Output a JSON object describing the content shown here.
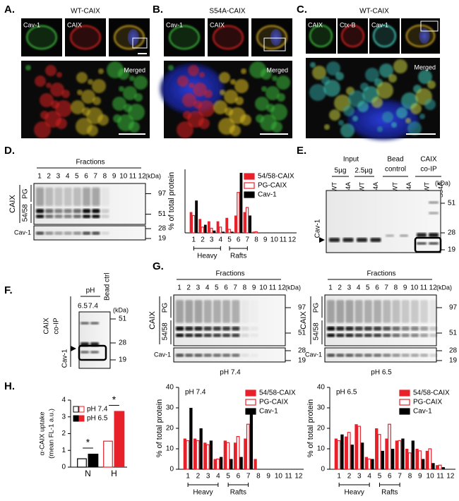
{
  "panels": {
    "A": {
      "letter": "A.",
      "title": "WT-CAIX",
      "channels": [
        "Cav-1",
        "CAIX"
      ],
      "merged": "Merged"
    },
    "B": {
      "letter": "B.",
      "title": "S54A-CAIX",
      "channels": [
        "Cav-1",
        "CAIX"
      ],
      "merged": "Merged"
    },
    "C": {
      "letter": "C.",
      "title": "WT-CAIX",
      "channels": [
        "CAIX",
        "Ctx-B",
        "Cav-1"
      ],
      "merged": "Merged"
    },
    "D": {
      "letter": "D.",
      "header": "Fractions",
      "lanes": [
        "1",
        "2",
        "3",
        "4",
        "5",
        "6",
        "7",
        "8",
        "9",
        "10",
        "11",
        "12"
      ],
      "kda": "(kDa)",
      "markers": [
        "97",
        "51",
        "28",
        "19"
      ],
      "protein": "CAIX",
      "bands": [
        "PG",
        "54/58"
      ],
      "cav": "Cav-1"
    },
    "E": {
      "letter": "E.",
      "input": "Input",
      "amounts": [
        "5µg",
        "2.5µg"
      ],
      "bead": [
        "Bead",
        "control"
      ],
      "coip": [
        "CAIX",
        "co-IP"
      ],
      "lanes": [
        "WT",
        "S54A",
        "WT",
        "S54A",
        "WT",
        "S54A",
        "WT",
        "S54A"
      ],
      "kda": "(kDa)",
      "markers": [
        "51",
        "28",
        "19"
      ],
      "cav": "Cav-1"
    },
    "F": {
      "letter": "F.",
      "ph": "pH",
      "lanes": [
        "6.5",
        "7.4",
        "Bead ctrl"
      ],
      "kda": "(kDa)",
      "markers": [
        "51",
        "28",
        "19"
      ],
      "coip": [
        "CAIX",
        "co-IP"
      ],
      "cav": "Cav-1"
    },
    "G": {
      "letter": "G.",
      "blots": [
        {
          "header": "Fractions",
          "lanes": [
            "1",
            "2",
            "3",
            "4",
            "5",
            "6",
            "7",
            "8",
            "9",
            "10",
            "11",
            "12"
          ],
          "kda": "(kDa)",
          "markers": [
            "97",
            "51",
            "28",
            "19"
          ],
          "protein": "CAIX",
          "bands": [
            "PG",
            "54/58"
          ],
          "cav": "Cav-1",
          "caption": "pH 7.4"
        },
        {
          "header": "Fractions",
          "lanes": [
            "1",
            "2",
            "3",
            "4",
            "5",
            "6",
            "7",
            "8",
            "9",
            "10",
            "11",
            "12"
          ],
          "kda": "(kDa)",
          "markers": [
            "97",
            "51",
            "28",
            "19"
          ],
          "protein": "CAIX",
          "bands": [
            "PG",
            "54/58"
          ],
          "cav": "Cav-1",
          "caption": "pH 6.5"
        }
      ]
    },
    "H": {
      "letter": "H."
    }
  },
  "chart_data": [
    {
      "type": "bar",
      "y_label": "% of total protein",
      "categories": [
        "1",
        "2",
        "3",
        "4",
        "5",
        "6",
        "7",
        "8",
        "9",
        "10",
        "11",
        "12"
      ],
      "group_labels": [
        "Heavy",
        "Rafts"
      ],
      "series": [
        {
          "name": "54/58-CAIX",
          "color": "#e8202a",
          "style": "filled",
          "values": [
            18,
            12,
            10,
            10,
            13,
            15,
            18,
            1,
            0,
            0,
            0,
            0
          ]
        },
        {
          "name": "PG-CAIX",
          "color": "#e8202a",
          "style": "outline",
          "values": [
            15,
            5,
            4,
            5,
            3,
            35,
            22,
            1,
            0,
            0,
            0,
            0
          ]
        },
        {
          "name": "Cav-1",
          "color": "#000000",
          "style": "filled",
          "values": [
            28,
            7,
            2,
            1,
            1,
            52,
            15,
            0,
            0,
            0,
            0,
            0
          ]
        }
      ],
      "ylim": [
        0,
        55
      ]
    },
    {
      "type": "bar",
      "title": "pH 7.4",
      "y_label": "% of total protein",
      "categories": [
        "1",
        "2",
        "3",
        "4",
        "5",
        "6",
        "7",
        "8",
        "9",
        "10",
        "11",
        "12"
      ],
      "group_labels": [
        "Heavy",
        "Rafts"
      ],
      "series": [
        {
          "name": "54/58-CAIX",
          "color": "#e8202a",
          "style": "filled",
          "values": [
            15,
            15,
            13,
            5,
            14,
            13,
            15,
            5,
            0,
            0,
            0,
            0
          ]
        },
        {
          "name": "PG-CAIX",
          "color": "#e8202a",
          "style": "outline",
          "values": [
            14,
            14,
            12,
            5,
            13,
            16,
            22,
            0,
            0,
            0,
            0,
            0
          ]
        },
        {
          "name": "Cav-1",
          "color": "#000000",
          "style": "filled",
          "values": [
            30,
            20,
            14,
            6,
            5,
            6,
            27,
            0,
            0,
            0,
            0,
            0
          ]
        }
      ],
      "ylim": [
        0,
        40
      ],
      "yticks": [
        0,
        10,
        20,
        30,
        40
      ]
    },
    {
      "type": "bar",
      "title": "pH 6.5",
      "y_label": "% of total protein",
      "categories": [
        "1",
        "2",
        "3",
        "4",
        "5",
        "6",
        "7",
        "8",
        "9",
        "10",
        "11",
        "12"
      ],
      "group_labels": [
        "Heavy",
        "Rafts"
      ],
      "series": [
        {
          "name": "54/58-CAIX",
          "color": "#e8202a",
          "style": "filled",
          "values": [
            15,
            16,
            22,
            6,
            20,
            15,
            14,
            10,
            10,
            9,
            2,
            0
          ]
        },
        {
          "name": "PG-CAIX",
          "color": "#e8202a",
          "style": "outline",
          "values": [
            14,
            18,
            21,
            5,
            17,
            22,
            14,
            8,
            9,
            10,
            2,
            0
          ]
        },
        {
          "name": "Cav-1",
          "color": "#000000",
          "style": "filled",
          "values": [
            17,
            12,
            13,
            5,
            9,
            10,
            15,
            14,
            5,
            3,
            1,
            0
          ]
        }
      ],
      "ylim": [
        0,
        40
      ],
      "yticks": [
        0,
        10,
        20,
        30,
        40
      ]
    },
    {
      "type": "bar",
      "y_label": [
        "α-CAIX uptake",
        "(mean FL-1 a.u.)"
      ],
      "categories": [
        "N",
        "H"
      ],
      "category_colors": [
        "#000000",
        "#e8202a"
      ],
      "series": [
        {
          "name": "pH 7.4",
          "style": "outline",
          "values": [
            0.5,
            1.55
          ]
        },
        {
          "name": "pH 6.5",
          "style": "filled",
          "values": [
            0.8,
            3.35
          ]
        }
      ],
      "ylim": [
        0,
        4
      ],
      "yticks": [
        0,
        1,
        2,
        3,
        4
      ],
      "annotations": [
        "*",
        "*"
      ]
    }
  ]
}
